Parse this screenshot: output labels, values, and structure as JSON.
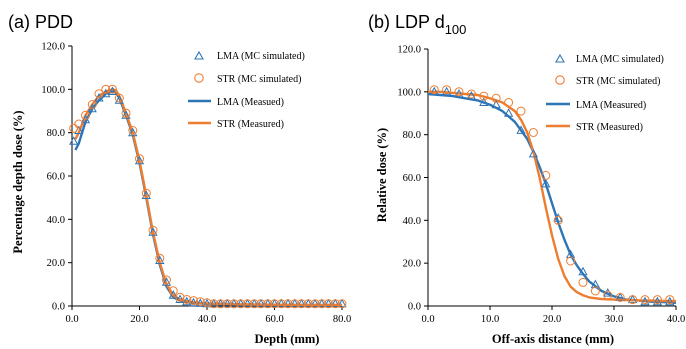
{
  "colors": {
    "lma": "#2e75b6",
    "str": "#ed7d31",
    "axis": "#000000"
  },
  "chart_data": [
    {
      "id": "pdd",
      "type": "line",
      "panel_label": "(a) PDD",
      "xlabel": "Depth (mm)",
      "ylabel": "Percentage depth dose (%)",
      "xlim": [
        0,
        80
      ],
      "ylim": [
        0,
        120
      ],
      "xticks": [
        0,
        20,
        40,
        60,
        80
      ],
      "xtick_labels": [
        "0.0",
        "20.0",
        "40.0",
        "60.0",
        "80.0"
      ],
      "yticks": [
        0,
        20,
        40,
        60,
        80,
        100,
        120
      ],
      "ytick_labels": [
        "0.0",
        "20.0",
        "40.0",
        "60.0",
        "80.0",
        "100.0",
        "120.0"
      ],
      "grid": false,
      "legend_position": "top-right",
      "legend": [
        "LMA (MC simulated)",
        "STR (MC simulated)",
        "LMA (Measued)",
        "STR (Measured)"
      ],
      "series": [
        {
          "name": "LMA (MC simulated)",
          "style": "triangle-markers",
          "color": "lma",
          "x": [
            0.5,
            2,
            4,
            6,
            8,
            10,
            12,
            14,
            16,
            18,
            20,
            22,
            24,
            26,
            28,
            30,
            32,
            34,
            36,
            38,
            40,
            42,
            44,
            46,
            48,
            50,
            52,
            54,
            56,
            58,
            60,
            62,
            64,
            66,
            68,
            70,
            72,
            74,
            76,
            78,
            80
          ],
          "y": [
            76,
            81,
            86,
            91,
            96,
            98,
            99,
            95,
            88,
            80,
            67,
            51,
            34,
            21,
            11,
            5,
            3,
            2,
            1.5,
            1.2,
            1,
            1,
            1,
            1,
            1,
            1,
            1,
            1,
            1,
            1,
            1,
            1,
            1,
            1,
            1,
            1,
            1,
            1,
            1,
            1,
            1
          ]
        },
        {
          "name": "STR (MC simulated)",
          "style": "circle-markers",
          "color": "str",
          "x": [
            0.5,
            2,
            4,
            6,
            8,
            10,
            12,
            14,
            16,
            18,
            20,
            22,
            24,
            26,
            28,
            30,
            32,
            34,
            36,
            38,
            40,
            42,
            44,
            46,
            48,
            50,
            52,
            54,
            56,
            58,
            60,
            62,
            64,
            66,
            68,
            70,
            72,
            74,
            76,
            78,
            80
          ],
          "y": [
            82,
            84,
            88,
            93,
            98,
            100,
            100,
            96,
            89,
            81,
            68,
            52,
            35,
            22,
            12,
            7,
            4,
            3,
            2.5,
            2,
            1.5,
            1,
            1,
            1,
            1,
            1,
            1,
            1,
            1,
            1,
            1,
            1,
            1,
            1,
            1,
            1,
            1,
            1,
            1,
            1,
            1
          ]
        },
        {
          "name": "LMA (Measued)",
          "style": "line",
          "color": "lma",
          "x": [
            1,
            2,
            3,
            4,
            6,
            8,
            10,
            12,
            13,
            14,
            16,
            18,
            20,
            22,
            24,
            26,
            28,
            30,
            32,
            34,
            36,
            38,
            40,
            45,
            50,
            60,
            70,
            80
          ],
          "y": [
            72,
            75,
            80,
            85,
            91,
            95,
            98,
            99,
            98.5,
            96,
            88,
            79,
            66,
            50,
            33,
            19,
            9,
            4,
            2.5,
            1.8,
            1.4,
            1.2,
            1,
            0.8,
            0.6,
            0.5,
            0.4,
            0.4
          ]
        },
        {
          "name": "STR (Measured)",
          "style": "line",
          "color": "str",
          "x": [
            1,
            2,
            3,
            4,
            6,
            8,
            10,
            12,
            13,
            14,
            16,
            18,
            20,
            22,
            24,
            26,
            28,
            30,
            32,
            34,
            36,
            38,
            40,
            45,
            50,
            60,
            70,
            80
          ],
          "y": [
            77,
            80,
            84,
            88,
            93,
            97,
            99,
            100,
            99.5,
            97,
            89,
            80,
            67,
            51,
            34,
            20,
            10,
            5,
            3,
            2.2,
            1.7,
            1.4,
            1.2,
            1,
            0.8,
            0.6,
            0.5,
            0.5
          ]
        }
      ]
    },
    {
      "id": "ldp",
      "type": "line",
      "panel_label": "(b) LDP d",
      "panel_label_sub": "100",
      "xlabel": "Off-axis distance  (mm)",
      "ylabel": "Relative dose (%)",
      "xlim": [
        0,
        40
      ],
      "ylim": [
        0,
        120
      ],
      "xticks": [
        0,
        10,
        20,
        30,
        40
      ],
      "xtick_labels": [
        "0.0",
        "10.0",
        "20.0",
        "30.0",
        "40.0"
      ],
      "yticks": [
        0,
        20,
        40,
        60,
        80,
        100,
        120
      ],
      "ytick_labels": [
        "0.0",
        "20.0",
        "40.0",
        "60.0",
        "80.0",
        "100.0",
        "120.0"
      ],
      "grid": false,
      "legend_position": "top-right",
      "legend": [
        "LMA (MC simulated)",
        "STR (MC simulated)",
        "LMA (Measured)",
        "STR (Measured)"
      ],
      "series": [
        {
          "name": "LMA (MC simulated)",
          "style": "triangle-markers",
          "color": "lma",
          "x": [
            1,
            3,
            5,
            7,
            9,
            11,
            13,
            15,
            17,
            19,
            21,
            23,
            25,
            27,
            29,
            31,
            33,
            35,
            37,
            39
          ],
          "y": [
            100,
            100,
            99,
            98,
            95,
            94,
            90,
            82,
            71,
            57,
            41,
            24,
            16,
            10,
            6,
            4,
            3,
            2,
            2,
            2
          ]
        },
        {
          "name": "STR (MC simulated)",
          "style": "circle-markers",
          "color": "str",
          "x": [
            1,
            3,
            5,
            7,
            9,
            11,
            13,
            15,
            17,
            19,
            21,
            23,
            25,
            27,
            29,
            31,
            33,
            35,
            37,
            39
          ],
          "y": [
            101,
            101,
            100,
            99,
            98,
            97,
            95,
            91,
            81,
            61,
            40,
            21,
            11,
            7,
            5,
            4,
            3,
            3,
            3,
            3
          ]
        },
        {
          "name": "LMA (Measured)",
          "style": "line",
          "color": "lma",
          "x": [
            0,
            2,
            4,
            6,
            8,
            10,
            12,
            14,
            16,
            17,
            18,
            19,
            20,
            21,
            22,
            23,
            24,
            25,
            26,
            28,
            30,
            32,
            34,
            36,
            38,
            40
          ],
          "y": [
            99,
            98.5,
            98,
            97,
            96,
            94,
            91,
            86,
            78,
            72,
            65,
            57,
            48,
            39,
            31,
            24,
            19,
            15,
            11.5,
            7,
            4.5,
            3,
            2.5,
            2,
            1.8,
            1.5
          ]
        },
        {
          "name": "STR (Measured)",
          "style": "line",
          "color": "str",
          "x": [
            0,
            2,
            4,
            6,
            8,
            10,
            12,
            14,
            15,
            16,
            17,
            18,
            19,
            20,
            21,
            22,
            23,
            24,
            25,
            26,
            28,
            30,
            32,
            34,
            36,
            38,
            40
          ],
          "y": [
            100,
            100,
            99.5,
            99,
            98.5,
            97,
            95,
            91,
            87,
            81,
            72,
            60,
            46,
            33,
            22,
            14,
            9,
            6.5,
            5,
            4,
            3.2,
            3,
            2.8,
            2.6,
            2.5,
            2.4,
            2.3
          ]
        }
      ]
    }
  ]
}
